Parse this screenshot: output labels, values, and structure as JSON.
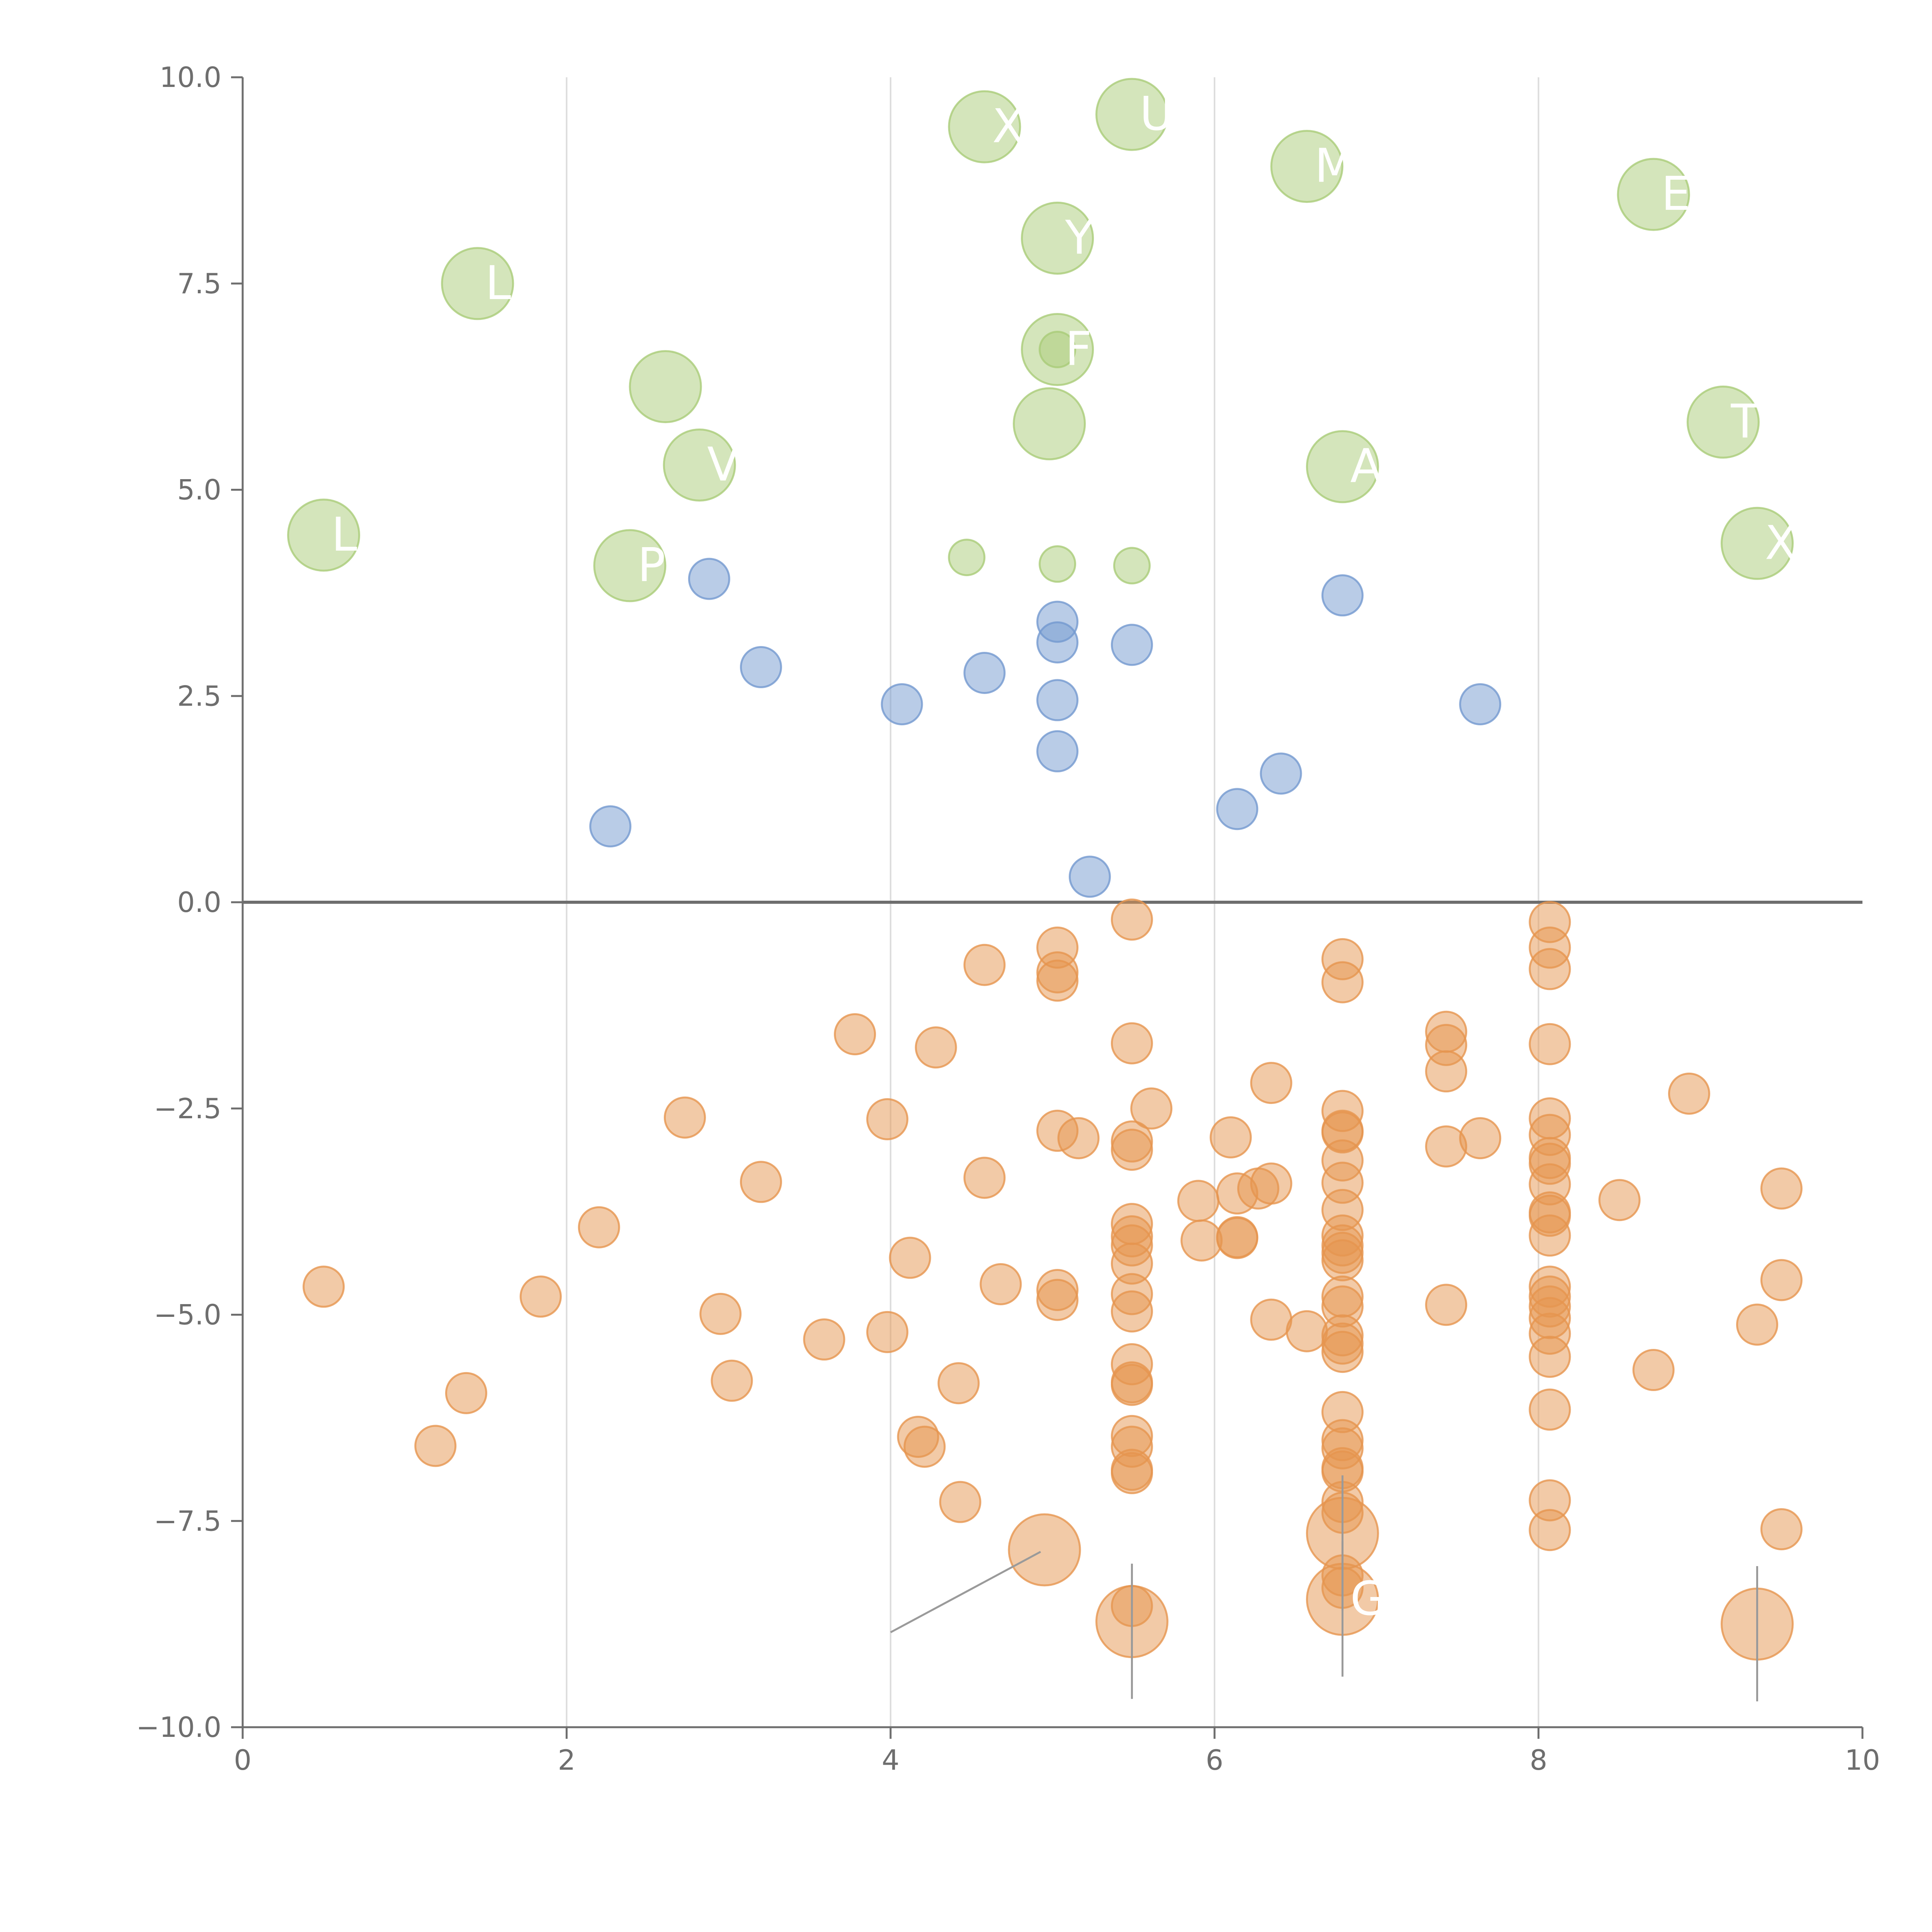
{
  "chart_data": {
    "type": "scatter",
    "title": "",
    "xlabel": "",
    "ylabel": "",
    "xlim": [
      0,
      10
    ],
    "ylim": [
      -10,
      10
    ],
    "x_ticks": [
      "0",
      "2",
      "4",
      "6",
      "8",
      "10"
    ],
    "y_ticks": [
      "−10.0",
      "−7.5",
      "−5.0",
      "−2.5",
      "0.0",
      "2.5",
      "5.0",
      "7.5",
      "10.0"
    ],
    "grid": "vertical",
    "zero_line": true,
    "colors": {
      "green": "#a9cc78",
      "blue": "#7399d0",
      "orange": "#e6954f",
      "axis": "#6e6e6e",
      "grid": "#dcdcdc",
      "leader": "#9a9a9a"
    },
    "series": [
      {
        "name": "green",
        "points": [
          {
            "x": 4.58,
            "y": 9.4,
            "size": 2,
            "label": "X"
          },
          {
            "x": 5.49,
            "y": 9.55,
            "size": 2,
            "label": "UT"
          },
          {
            "x": 6.57,
            "y": 8.92,
            "size": 2,
            "label": "M"
          },
          {
            "x": 8.71,
            "y": 8.58,
            "size": 2,
            "label": "EL"
          },
          {
            "x": 1.45,
            "y": 7.5,
            "size": 2,
            "label": "LE"
          },
          {
            "x": 5.03,
            "y": 8.05,
            "size": 2,
            "label": "Y"
          },
          {
            "x": 5.03,
            "y": 6.7,
            "size": 2,
            "label": "F"
          },
          {
            "x": 2.61,
            "y": 6.25,
            "size": 2,
            "label": ""
          },
          {
            "x": 4.98,
            "y": 5.8,
            "size": 2,
            "label": ""
          },
          {
            "x": 2.82,
            "y": 5.3,
            "size": 2,
            "label": "V"
          },
          {
            "x": 6.79,
            "y": 5.28,
            "size": 2,
            "label": "A"
          },
          {
            "x": 9.14,
            "y": 5.82,
            "size": 2,
            "label": "T"
          },
          {
            "x": 0.5,
            "y": 4.45,
            "size": 2,
            "label": "L"
          },
          {
            "x": 2.39,
            "y": 4.08,
            "size": 2,
            "label": "P"
          },
          {
            "x": 9.35,
            "y": 4.35,
            "size": 2,
            "label": "X"
          },
          {
            "x": 4.47,
            "y": 4.18,
            "size": 1,
            "label": ""
          },
          {
            "x": 5.03,
            "y": 4.1,
            "size": 1,
            "label": ""
          },
          {
            "x": 5.49,
            "y": 4.08,
            "size": 1,
            "label": ""
          },
          {
            "x": 5.03,
            "y": 6.7,
            "size": 1,
            "label": ""
          }
        ]
      },
      {
        "name": "blue",
        "points": [
          {
            "x": 2.88,
            "y": 3.92
          },
          {
            "x": 3.2,
            "y": 2.85
          },
          {
            "x": 4.07,
            "y": 2.4
          },
          {
            "x": 4.58,
            "y": 2.78
          },
          {
            "x": 5.03,
            "y": 3.4
          },
          {
            "x": 5.03,
            "y": 3.15
          },
          {
            "x": 5.49,
            "y": 3.12
          },
          {
            "x": 5.03,
            "y": 2.45
          },
          {
            "x": 5.03,
            "y": 1.83
          },
          {
            "x": 6.79,
            "y": 3.72
          },
          {
            "x": 7.64,
            "y": 2.4
          },
          {
            "x": 6.41,
            "y": 1.56
          },
          {
            "x": 6.14,
            "y": 1.13
          },
          {
            "x": 2.27,
            "y": 0.92
          },
          {
            "x": 5.23,
            "y": 0.31
          }
        ]
      },
      {
        "name": "orange",
        "points": [
          {
            "x": 5.49,
            "y": -0.21
          },
          {
            "x": 5.03,
            "y": -0.55
          },
          {
            "x": 5.03,
            "y": -0.85
          },
          {
            "x": 5.03,
            "y": -0.95
          },
          {
            "x": 4.58,
            "y": -0.76
          },
          {
            "x": 3.78,
            "y": -1.6
          },
          {
            "x": 4.28,
            "y": -1.76
          },
          {
            "x": 5.49,
            "y": -1.71
          },
          {
            "x": 5.61,
            "y": -2.5
          },
          {
            "x": 5.03,
            "y": -2.77
          },
          {
            "x": 5.16,
            "y": -2.86
          },
          {
            "x": 5.49,
            "y": -2.9
          },
          {
            "x": 5.49,
            "y": -3.0
          },
          {
            "x": 2.73,
            "y": -2.61
          },
          {
            "x": 3.98,
            "y": -2.63
          },
          {
            "x": 3.2,
            "y": -3.39
          },
          {
            "x": 4.58,
            "y": -3.34
          },
          {
            "x": 2.2,
            "y": -3.94
          },
          {
            "x": 0.5,
            "y": -4.66
          },
          {
            "x": 1.84,
            "y": -4.78
          },
          {
            "x": 1.38,
            "y": -5.95
          },
          {
            "x": 1.19,
            "y": -6.59
          },
          {
            "x": 2.95,
            "y": -4.99
          },
          {
            "x": 3.02,
            "y": -5.8
          },
          {
            "x": 3.59,
            "y": -5.3
          },
          {
            "x": 3.98,
            "y": -5.21
          },
          {
            "x": 4.12,
            "y": -4.31
          },
          {
            "x": 4.68,
            "y": -4.63
          },
          {
            "x": 5.03,
            "y": -4.7
          },
          {
            "x": 5.03,
            "y": -4.82
          },
          {
            "x": 4.42,
            "y": -5.83
          },
          {
            "x": 4.17,
            "y": -6.48
          },
          {
            "x": 4.21,
            "y": -6.6
          },
          {
            "x": 4.43,
            "y": -7.27
          },
          {
            "x": 5.49,
            "y": -3.9
          },
          {
            "x": 5.49,
            "y": -4.05
          },
          {
            "x": 5.49,
            "y": -4.16
          },
          {
            "x": 5.49,
            "y": -4.38
          },
          {
            "x": 5.49,
            "y": -4.75
          },
          {
            "x": 5.49,
            "y": -4.96
          },
          {
            "x": 5.49,
            "y": -5.6
          },
          {
            "x": 5.49,
            "y": -5.82
          },
          {
            "x": 5.49,
            "y": -5.85
          },
          {
            "x": 5.49,
            "y": -6.47
          },
          {
            "x": 5.49,
            "y": -6.6
          },
          {
            "x": 5.49,
            "y": -6.88
          },
          {
            "x": 5.49,
            "y": -6.92
          },
          {
            "x": 5.49,
            "y": -8.53
          },
          {
            "x": 5.9,
            "y": -3.62
          },
          {
            "x": 5.92,
            "y": -4.1
          },
          {
            "x": 6.1,
            "y": -2.85
          },
          {
            "x": 6.14,
            "y": -3.53
          },
          {
            "x": 6.14,
            "y": -4.06
          },
          {
            "x": 6.14,
            "y": -4.07
          },
          {
            "x": 6.27,
            "y": -3.47
          },
          {
            "x": 6.35,
            "y": -3.41
          },
          {
            "x": 6.35,
            "y": -2.19
          },
          {
            "x": 6.35,
            "y": -5.06
          },
          {
            "x": 6.57,
            "y": -5.2
          },
          {
            "x": 6.79,
            "y": -0.69
          },
          {
            "x": 6.79,
            "y": -0.97
          },
          {
            "x": 6.79,
            "y": -2.53
          },
          {
            "x": 6.79,
            "y": -2.77
          },
          {
            "x": 6.79,
            "y": -2.79
          },
          {
            "x": 6.79,
            "y": -3.13
          },
          {
            "x": 6.79,
            "y": -3.4
          },
          {
            "x": 6.79,
            "y": -3.73
          },
          {
            "x": 6.79,
            "y": -4.04
          },
          {
            "x": 6.79,
            "y": -4.16
          },
          {
            "x": 6.79,
            "y": -4.25
          },
          {
            "x": 6.79,
            "y": -4.34
          },
          {
            "x": 6.79,
            "y": -4.78
          },
          {
            "x": 6.79,
            "y": -4.9
          },
          {
            "x": 6.79,
            "y": -5.25
          },
          {
            "x": 6.79,
            "y": -5.35
          },
          {
            "x": 6.79,
            "y": -5.45
          },
          {
            "x": 6.79,
            "y": -6.18
          },
          {
            "x": 6.79,
            "y": -6.52
          },
          {
            "x": 6.79,
            "y": -6.62
          },
          {
            "x": 6.79,
            "y": -6.86
          },
          {
            "x": 6.79,
            "y": -6.9
          },
          {
            "x": 6.79,
            "y": -7.27
          },
          {
            "x": 6.79,
            "y": -7.4
          },
          {
            "x": 6.79,
            "y": -8.16
          },
          {
            "x": 6.79,
            "y": -8.31
          },
          {
            "x": 7.43,
            "y": -1.57
          },
          {
            "x": 7.43,
            "y": -1.73
          },
          {
            "x": 7.43,
            "y": -2.05
          },
          {
            "x": 7.43,
            "y": -2.96
          },
          {
            "x": 7.43,
            "y": -4.88
          },
          {
            "x": 7.64,
            "y": -2.86
          },
          {
            "x": 8.07,
            "y": -0.24
          },
          {
            "x": 8.07,
            "y": -0.55
          },
          {
            "x": 8.07,
            "y": -0.81
          },
          {
            "x": 8.07,
            "y": -1.72
          },
          {
            "x": 8.07,
            "y": -2.62
          },
          {
            "x": 8.07,
            "y": -2.82
          },
          {
            "x": 8.07,
            "y": -3.1
          },
          {
            "x": 8.07,
            "y": -3.17
          },
          {
            "x": 8.07,
            "y": -3.42
          },
          {
            "x": 8.07,
            "y": -3.76
          },
          {
            "x": 8.07,
            "y": -3.8
          },
          {
            "x": 8.07,
            "y": -4.04
          },
          {
            "x": 8.07,
            "y": -4.66
          },
          {
            "x": 8.07,
            "y": -4.78
          },
          {
            "x": 8.07,
            "y": -4.9
          },
          {
            "x": 8.07,
            "y": -5.04
          },
          {
            "x": 8.07,
            "y": -5.23
          },
          {
            "x": 8.07,
            "y": -5.51
          },
          {
            "x": 8.07,
            "y": -6.15
          },
          {
            "x": 8.07,
            "y": -7.25
          },
          {
            "x": 8.07,
            "y": -7.61
          },
          {
            "x": 8.5,
            "y": -3.61
          },
          {
            "x": 8.71,
            "y": -5.67
          },
          {
            "x": 8.93,
            "y": -2.32
          },
          {
            "x": 9.35,
            "y": -5.12
          },
          {
            "x": 9.5,
            "y": -3.47
          },
          {
            "x": 9.5,
            "y": -4.58
          },
          {
            "x": 9.5,
            "y": -7.6
          },
          {
            "x": 4.95,
            "y": -7.85,
            "size": 2,
            "label": ""
          },
          {
            "x": 5.49,
            "y": -8.72,
            "size": 2,
            "label": ""
          },
          {
            "x": 6.79,
            "y": -7.65,
            "size": 2,
            "label": ""
          },
          {
            "x": 6.79,
            "y": -8.45,
            "size": 2,
            "label": "G"
          },
          {
            "x": 9.35,
            "y": -8.75,
            "size": 2,
            "label": ""
          }
        ]
      }
    ]
  }
}
